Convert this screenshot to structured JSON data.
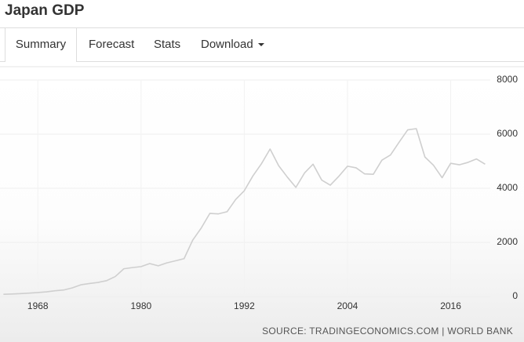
{
  "header": {
    "title": "Japan GDP"
  },
  "tabs": [
    "Summary",
    "Forecast",
    "Stats",
    "Download"
  ],
  "chart_data": {
    "type": "line",
    "source": "SOURCE: TRADINGECONOMICS.COM | WORLD BANK",
    "x": [
      1964,
      1965,
      1966,
      1967,
      1968,
      1969,
      1970,
      1971,
      1972,
      1973,
      1974,
      1975,
      1976,
      1977,
      1978,
      1979,
      1980,
      1981,
      1982,
      1983,
      1984,
      1985,
      1986,
      1987,
      1988,
      1989,
      1990,
      1991,
      1992,
      1993,
      1994,
      1995,
      1996,
      1997,
      1998,
      1999,
      2000,
      2001,
      2002,
      2003,
      2004,
      2005,
      2006,
      2007,
      2008,
      2009,
      2010,
      2011,
      2012,
      2013,
      2014,
      2015,
      2016,
      2017,
      2018,
      2019,
      2020
    ],
    "values": [
      82,
      91,
      106,
      124,
      147,
      173,
      212,
      240,
      318,
      432,
      479,
      521,
      586,
      737,
      1025,
      1069,
      1105,
      1218,
      1134,
      1243,
      1318,
      1399,
      2079,
      2532,
      3072,
      3054,
      3133,
      3584,
      3909,
      4454,
      4907,
      5449,
      4833,
      4415,
      4032,
      4562,
      4888,
      4304,
      4115,
      4445,
      4815,
      4755,
      4530,
      4515,
      5038,
      5231,
      5700,
      6157,
      6203,
      5156,
      4850,
      4389,
      4923,
      4867,
      4955,
      5082,
      4888
    ],
    "color": "#cfcfcf",
    "xlim": [
      1963.6,
      2020.6
    ],
    "xticks": [
      1968,
      1980,
      1992,
      2004,
      2016
    ],
    "ylim": [
      0,
      8000
    ],
    "yticks": [
      0,
      2000,
      4000,
      6000,
      8000
    ],
    "grid": true
  }
}
